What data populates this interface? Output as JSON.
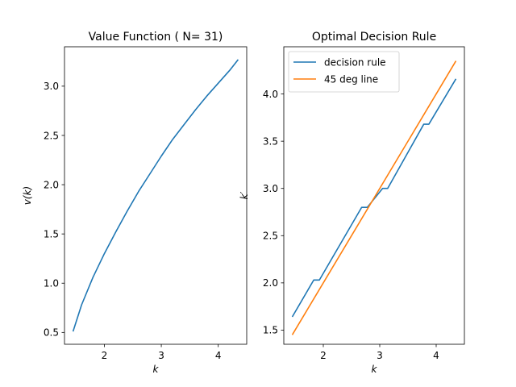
{
  "chart_data": [
    {
      "type": "line",
      "title": "Value Function ( N= 31)",
      "xlabel": "k",
      "ylabel": "v(k)",
      "xlim": [
        1.3,
        4.5
      ],
      "ylim": [
        0.38,
        3.4
      ],
      "xticks": [
        2,
        3,
        4
      ],
      "xtick_labels": [
        "2",
        "3",
        "4"
      ],
      "yticks": [
        0.5,
        1.0,
        1.5,
        2.0,
        2.5,
        3.0
      ],
      "ytick_labels": [
        "0.5",
        "1.0",
        "1.5",
        "2.0",
        "2.5",
        "3.0"
      ],
      "grid": false,
      "series": [
        {
          "color": "#1f77b4",
          "x": [
            1.45,
            1.6,
            1.8,
            2.0,
            2.2,
            2.4,
            2.6,
            2.8,
            3.0,
            3.2,
            3.4,
            3.6,
            3.8,
            4.0,
            4.2,
            4.35
          ],
          "y": [
            0.51,
            0.78,
            1.06,
            1.3,
            1.52,
            1.73,
            1.93,
            2.11,
            2.29,
            2.46,
            2.61,
            2.76,
            2.9,
            3.03,
            3.16,
            3.27
          ]
        }
      ]
    },
    {
      "type": "line",
      "title": "Optimal Decision Rule",
      "xlabel": "k",
      "ylabel": "k′",
      "xlim": [
        1.3,
        4.5
      ],
      "ylim": [
        1.35,
        4.5
      ],
      "xticks": [
        2,
        3,
        4
      ],
      "xtick_labels": [
        "2",
        "3",
        "4"
      ],
      "yticks": [
        1.5,
        2.0,
        2.5,
        3.0,
        3.5,
        4.0
      ],
      "ytick_labels": [
        "1.5",
        "2.0",
        "2.5",
        "3.0",
        "3.5",
        "4.0"
      ],
      "grid": false,
      "legend_position": "top-left",
      "series": [
        {
          "name": "decision rule",
          "color": "#1f77b4",
          "x": [
            1.45,
            1.83,
            1.93,
            2.68,
            2.78,
            3.05,
            3.14,
            3.78,
            3.87,
            4.35
          ],
          "y": [
            1.64,
            2.03,
            2.03,
            2.8,
            2.8,
            3.0,
            3.0,
            3.68,
            3.68,
            4.16
          ]
        },
        {
          "name": "45 deg line",
          "color": "#ff7f0e",
          "x": [
            1.45,
            4.35
          ],
          "y": [
            1.45,
            4.35
          ]
        }
      ]
    }
  ]
}
